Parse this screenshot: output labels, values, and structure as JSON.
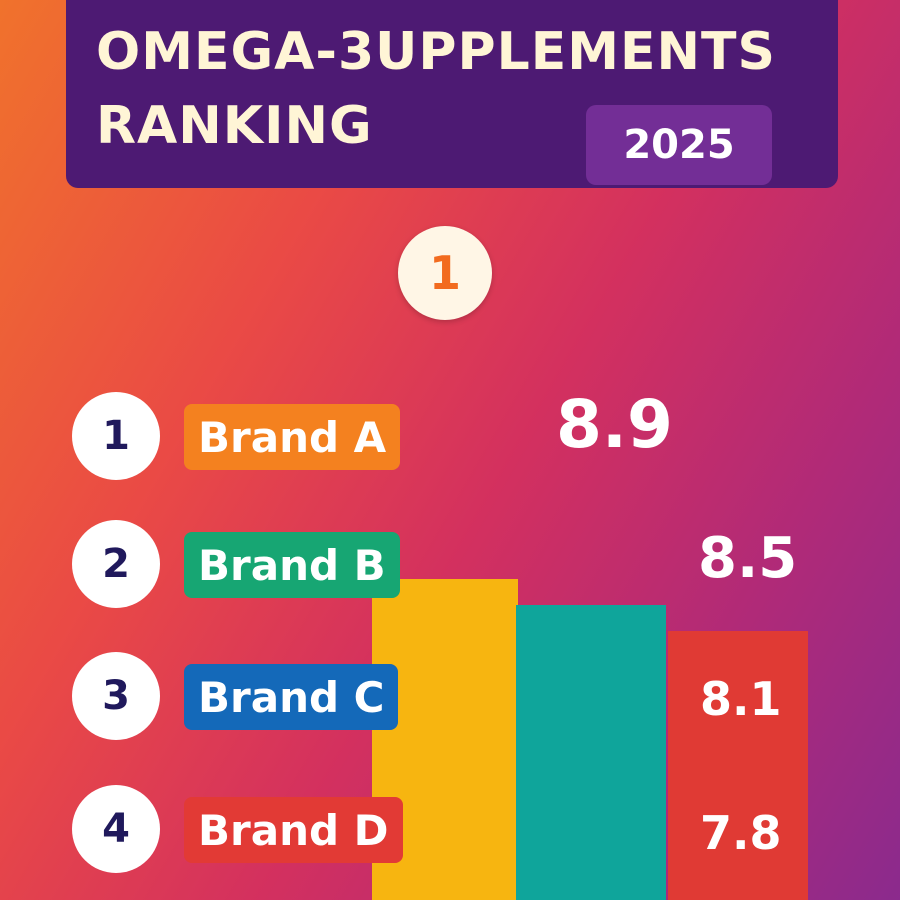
{
  "header": {
    "title_line_1": "OMEGA-3UPPLEMENTS",
    "title_line_2": "RANKING",
    "year": "2025"
  },
  "top_medal": "1",
  "chart_data": {
    "type": "bar",
    "title": "OMEGA-3UPPLEMENTS RANKING",
    "categories": [
      "Brand A",
      "Brand B",
      "Brand C",
      "Brand D"
    ],
    "values": [
      8.9,
      8.5,
      8.1,
      7.8
    ],
    "value_labels": [
      "8.9",
      "8.5",
      "8.1",
      "7.8"
    ],
    "ranks": [
      "1",
      "2",
      "3",
      "4"
    ],
    "colors": [
      "#f7b510",
      "#0fa59b",
      "#e03a34",
      "#e03a34"
    ],
    "pill_colors": [
      "#f4811f",
      "#17a673",
      "#1469b9",
      "#e23a35"
    ]
  }
}
